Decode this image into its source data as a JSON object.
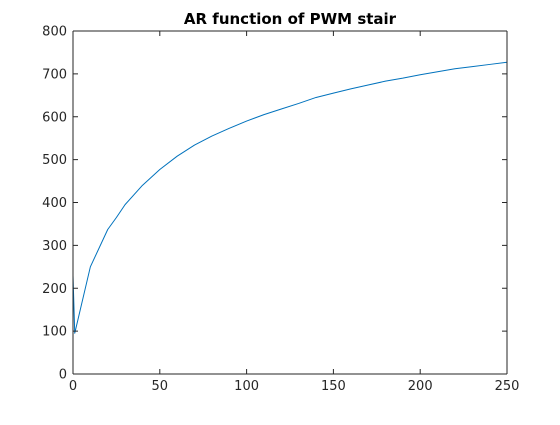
{
  "chart_data": {
    "type": "line",
    "title": "AR function of PWM stair",
    "xlabel": "",
    "ylabel": "",
    "xlim": [
      0,
      250
    ],
    "ylim": [
      0,
      800
    ],
    "x_ticks": [
      0,
      50,
      100,
      150,
      200,
      250
    ],
    "y_ticks": [
      0,
      100,
      200,
      300,
      400,
      500,
      600,
      700,
      800
    ],
    "grid": false,
    "legend": "none",
    "series": [
      {
        "color": "#0072BD",
        "x": [
          0,
          1,
          10,
          20,
          25,
          30,
          40,
          50,
          60,
          70,
          80,
          90,
          100,
          110,
          120,
          130,
          140,
          150,
          160,
          170,
          180,
          190,
          200,
          210,
          220,
          230,
          240,
          250
        ],
        "y": [
          230,
          95,
          250,
          337,
          365,
          395,
          440,
          477,
          508,
          534,
          555,
          573,
          590,
          605,
          618,
          631,
          645,
          655,
          665,
          674,
          683,
          690,
          698,
          705,
          712,
          717,
          722,
          727
        ]
      }
    ]
  }
}
